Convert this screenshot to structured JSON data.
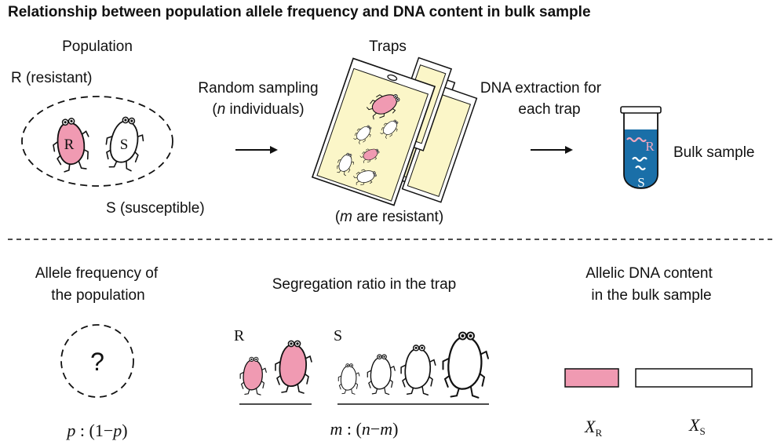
{
  "title": "Relationship between population allele frequency and DNA content in bulk sample",
  "colors": {
    "resistant_fill": "#f09ab2",
    "susceptible_fill": "#ffffff",
    "trap_paper": "#fbf6c8",
    "tube_liquid": "#1a6fa8",
    "dna_r": "#f0a8c0",
    "dna_s": "#ffffff",
    "outline": "#111111"
  },
  "top": {
    "population": {
      "heading": "Population",
      "r_label": "R (resistant)",
      "s_label": "S (susceptible)",
      "r_letter": "R",
      "s_letter": "S"
    },
    "sampling": {
      "line1": "Random sampling",
      "line2_open": "(",
      "line2_var": "n",
      "line2_rest": " individuals)"
    },
    "traps": {
      "heading": "Traps",
      "note_open": "(",
      "note_var": "m",
      "note_rest": " are resistant)"
    },
    "extraction": {
      "line1": "DNA extraction for",
      "line2": "each trap"
    },
    "bulk": {
      "label": "Bulk sample",
      "dna_r_letter": "R",
      "dna_s_letter": "S"
    }
  },
  "bottom": {
    "frequency": {
      "line1": "Allele frequency of",
      "line2": "the population",
      "unknown": "?",
      "formula": {
        "a": "p",
        "sep": " : (1−",
        "b": "p",
        "close": ")"
      }
    },
    "segregation": {
      "heading": "Segregation ratio in the trap",
      "r_group": "R",
      "s_group": "S",
      "formula": {
        "a": "m",
        "sep": " : (",
        "b": "n",
        "minus": "−",
        "c": "m",
        "close": ")"
      }
    },
    "content": {
      "line1": "Allelic DNA content",
      "line2": "in the bulk sample",
      "xr": {
        "base": "X",
        "sub": "R"
      },
      "xs": {
        "base": "X",
        "sub": "S"
      }
    }
  }
}
